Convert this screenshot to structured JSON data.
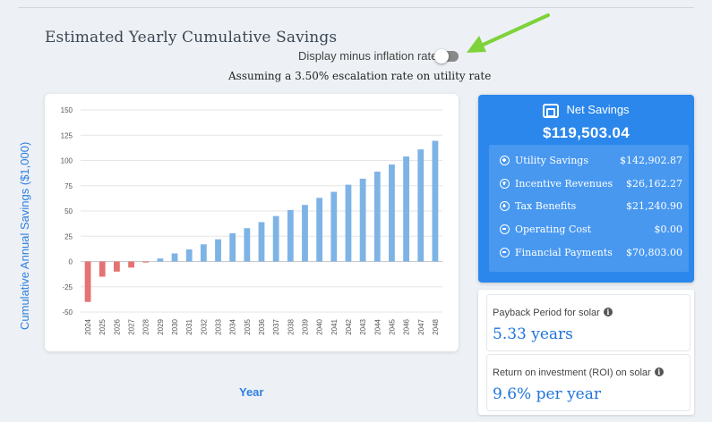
{
  "header": {
    "title": "Estimated Yearly Cumulative Savings",
    "toggle_label": "Display minus inflation rate",
    "toggle_on": false,
    "subtitle": "Assuming a 3.50% escalation rate on utility rate"
  },
  "colors": {
    "positive_bar": "#7eb3e6",
    "negative_bar": "#e57373",
    "accent": "#2b87ec",
    "arrow": "#7ed23a"
  },
  "chart_data": {
    "type": "bar",
    "title": "",
    "xlabel": "Year",
    "ylabel": "Cumulative Annual Savings ($1,000)",
    "ylim": [
      -50,
      150
    ],
    "yticks": [
      -50,
      -25,
      0,
      25,
      50,
      75,
      100,
      125,
      150
    ],
    "grid": true,
    "categories": [
      "2024",
      "2025",
      "2026",
      "2027",
      "2028",
      "2029",
      "2030",
      "2031",
      "2032",
      "2033",
      "2034",
      "2035",
      "2036",
      "2037",
      "2038",
      "2039",
      "2040",
      "2041",
      "2042",
      "2043",
      "2044",
      "2045",
      "2046",
      "2047",
      "2048"
    ],
    "values": [
      -40,
      -15,
      -10,
      -6,
      -1,
      3,
      8,
      12,
      17,
      22,
      28,
      33,
      39,
      45,
      51,
      56,
      63,
      69,
      76,
      82,
      89,
      96,
      104,
      111,
      119.5
    ]
  },
  "net_savings": {
    "title": "Net Savings",
    "icon": "wallet-icon",
    "total": "$119,503.04",
    "items": [
      {
        "label": "Utility Savings",
        "value": "$142,902.87",
        "sign": "plus"
      },
      {
        "label": "Incentive Revenues",
        "value": "$26,162.27",
        "sign": "plus"
      },
      {
        "label": "Tax Benefits",
        "value": "$21,240.90",
        "sign": "plus"
      },
      {
        "label": "Operating Cost",
        "value": "$0.00",
        "sign": "minus"
      },
      {
        "label": "Financial Payments",
        "value": "$70,803.00",
        "sign": "minus"
      }
    ]
  },
  "payback": {
    "caption": "Payback Period for solar",
    "value": "5.33 years"
  },
  "roi": {
    "caption": "Return on investment (ROI) on solar",
    "value": "9.6% per year"
  },
  "info_glyph": "i"
}
